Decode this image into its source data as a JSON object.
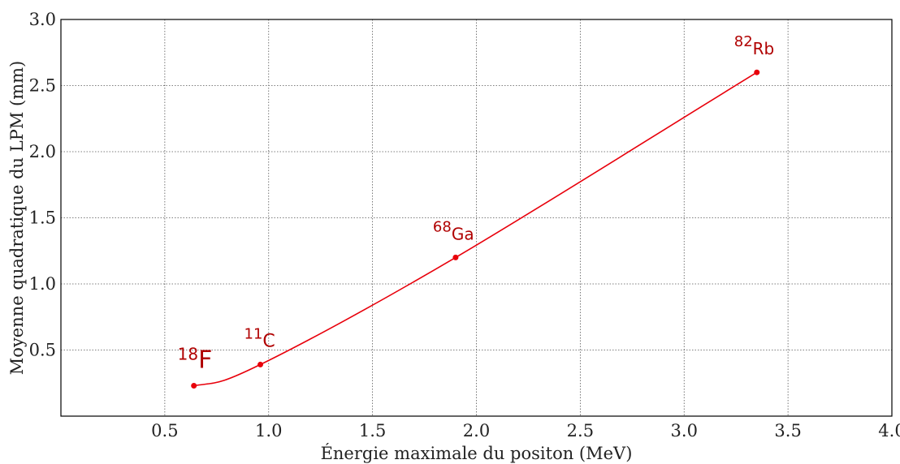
{
  "chart_data": {
    "type": "line",
    "title": "",
    "xlabel": "Énergie maximale du positon (MeV)",
    "ylabel": "Moyenne quadratique du LPM (mm)",
    "xlim": [
      0,
      4
    ],
    "ylim": [
      0,
      3
    ],
    "grid": true,
    "line_color": "#e8000b",
    "label_color": "#b00000",
    "x_ticks": [
      "0.5",
      "1.0",
      "1.5",
      "2.0",
      "2.5",
      "3.0",
      "3.5",
      "4.0"
    ],
    "y_ticks": [
      "0.5",
      "1.0",
      "1.5",
      "2.0",
      "2.5",
      "3.0"
    ],
    "points": [
      {
        "x": 0.64,
        "y": 0.23,
        "mass": "18",
        "symbol": "F"
      },
      {
        "x": 0.96,
        "y": 0.39,
        "mass": "11",
        "symbol": "C"
      },
      {
        "x": 1.9,
        "y": 1.2,
        "mass": "68",
        "symbol": "Ga"
      },
      {
        "x": 3.35,
        "y": 2.6,
        "mass": "82",
        "symbol": "Rb"
      }
    ]
  }
}
